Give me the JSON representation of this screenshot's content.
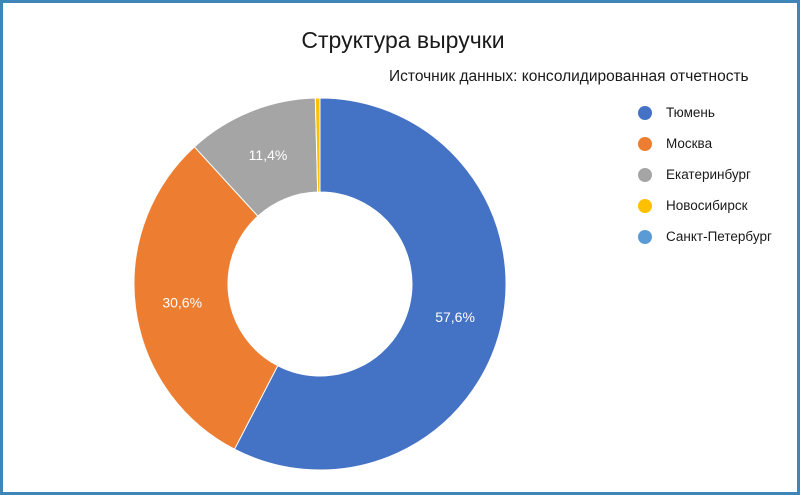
{
  "chart_data": {
    "type": "pie",
    "variant": "donut",
    "title": "Структура выручки",
    "subtitle": "Источник данных: консолидированная отчетность",
    "legend_position": "right",
    "series": [
      {
        "name": "Тюмень",
        "value": 57.6,
        "label": "57,6%",
        "color": "#4472c4"
      },
      {
        "name": "Москва",
        "value": 30.6,
        "label": "30,6%",
        "color": "#ed7d31"
      },
      {
        "name": "Екатеринбург",
        "value": 11.4,
        "label": "11,4%",
        "color": "#a5a5a5"
      },
      {
        "name": "Новосибирск",
        "value": 0.4,
        "label": "",
        "color": "#ffc000"
      },
      {
        "name": "Санкт-Петербург",
        "value": 0.0,
        "label": "",
        "color": "#5b9bd5"
      }
    ]
  }
}
